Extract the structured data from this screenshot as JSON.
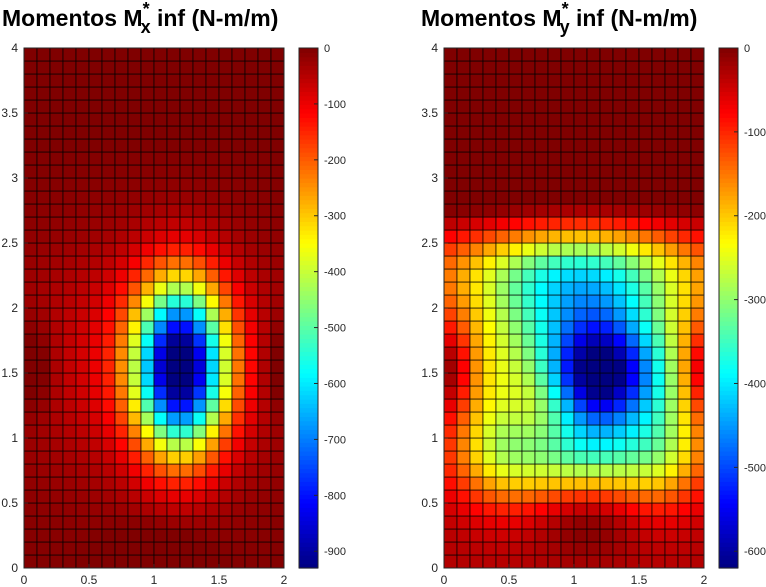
{
  "chart_data": [
    {
      "type": "heatmap",
      "title": "Momentos M",
      "title_sub": "x",
      "title_sup": "*",
      "title_suffix": " inf (N-m/m)",
      "x_range": [
        0,
        2
      ],
      "y_range": [
        0,
        4
      ],
      "x_ticks": [
        0,
        0.5,
        1,
        1.5,
        2
      ],
      "y_ticks": [
        0,
        0.5,
        1,
        1.5,
        2,
        2.5,
        3,
        3.5,
        4
      ],
      "grid_columns": 20,
      "grid_rows": 40,
      "colorbar": {
        "colormap": "jet",
        "range": [
          -930,
          0
        ],
        "ticks": [
          0,
          -100,
          -200,
          -300,
          -400,
          -500,
          -600,
          -700,
          -800,
          -900
        ]
      },
      "peak": {
        "x": 1.2,
        "y": 1.5,
        "value": -930
      },
      "grid": true
    },
    {
      "type": "heatmap",
      "title": "Momentos M",
      "title_sub": "y",
      "title_sup": "*",
      "title_suffix": " inf (N-m/m)",
      "x_range": [
        0,
        2
      ],
      "y_range": [
        0,
        4
      ],
      "x_ticks": [
        0,
        0.5,
        1,
        1.5,
        2
      ],
      "y_ticks": [
        0,
        0.5,
        1,
        1.5,
        2,
        2.5,
        3,
        3.5,
        4
      ],
      "grid_columns": 20,
      "grid_rows": 40,
      "colorbar": {
        "colormap": "jet",
        "range": [
          -620,
          0
        ],
        "ticks": [
          0,
          -100,
          -200,
          -300,
          -400,
          -500,
          -600
        ]
      },
      "peak": {
        "x": 1.2,
        "y": 1.5,
        "value": -620
      },
      "grid": true
    }
  ]
}
